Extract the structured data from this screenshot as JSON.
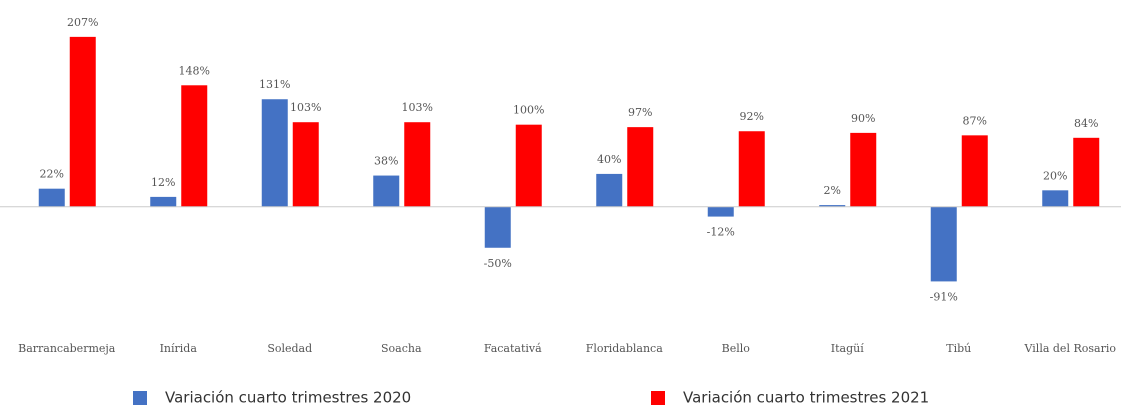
{
  "chart_data": {
    "type": "bar",
    "categories": [
      "Barrancabermeja",
      "Inírida",
      "Soledad",
      "Soacha",
      "Facatativá",
      "Floridablanca",
      "Bello",
      "Itagüí",
      "Tibú",
      "Villa del Rosario"
    ],
    "series": [
      {
        "name": "Variación cuarto trimestres 2020",
        "color": "#4472c4",
        "values": [
          22,
          12,
          131,
          38,
          -50,
          40,
          -12,
          2,
          -91,
          20
        ],
        "value_labels": [
          "22%",
          "12%",
          "131%",
          "38%",
          "-50%",
          "40%",
          "-12%",
          "2%",
          "-91%",
          "20%"
        ]
      },
      {
        "name": "Variación cuarto trimestres 2021",
        "color": "#ff0000",
        "values": [
          207,
          148,
          103,
          103,
          100,
          97,
          92,
          90,
          87,
          84
        ],
        "value_labels": [
          "207%",
          "148%",
          "103%",
          "103%",
          "100%",
          "97%",
          "92%",
          "90%",
          "87%",
          "84%"
        ]
      }
    ],
    "ylim": [
      -110,
      230
    ]
  }
}
